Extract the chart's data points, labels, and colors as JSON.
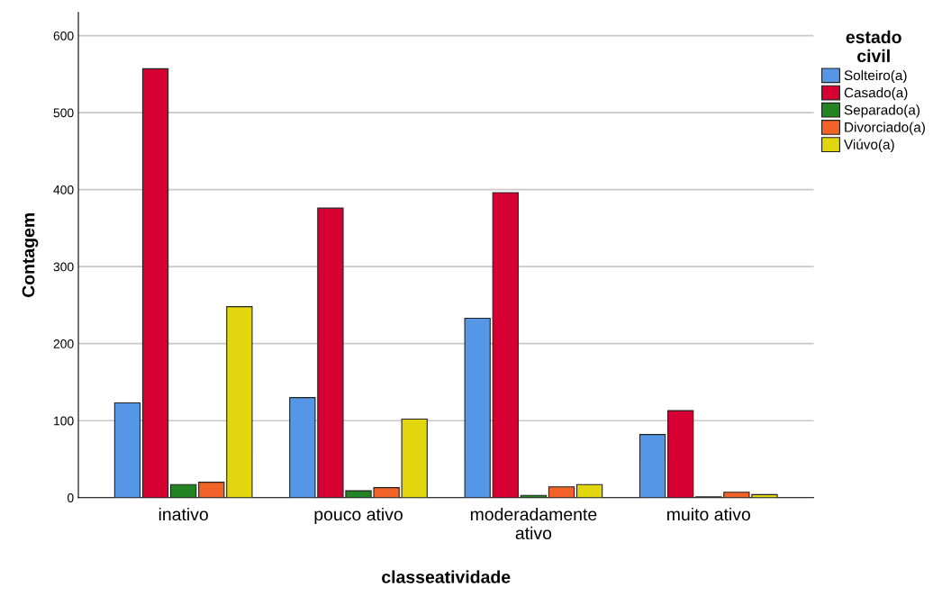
{
  "chart_data": {
    "type": "bar",
    "xlabel": "classeatividade",
    "ylabel": "Contagem",
    "legend_title": "estado\ncivil",
    "categories": [
      "inativo",
      "pouco ativo",
      "moderadamente\nativo",
      "muito ativo"
    ],
    "series": [
      {
        "name": "Solteiro(a)",
        "color": "#5596e6",
        "values": [
          123,
          130,
          233,
          82
        ]
      },
      {
        "name": "Casado(a)",
        "color": "#d70032",
        "values": [
          557,
          376,
          396,
          113
        ]
      },
      {
        "name": "Separado(a)",
        "color": "#228422",
        "values": [
          17,
          9,
          3,
          1
        ]
      },
      {
        "name": "Divorciado(a)",
        "color": "#f2632a",
        "values": [
          20,
          13,
          14,
          7
        ]
      },
      {
        "name": "Viúvo(a)",
        "color": "#e2d70e",
        "values": [
          248,
          102,
          17,
          4
        ]
      }
    ],
    "ylim": [
      0,
      630
    ],
    "yticks": [
      0,
      100,
      200,
      300,
      400,
      500,
      600
    ],
    "grid": "y",
    "legend": "right"
  }
}
